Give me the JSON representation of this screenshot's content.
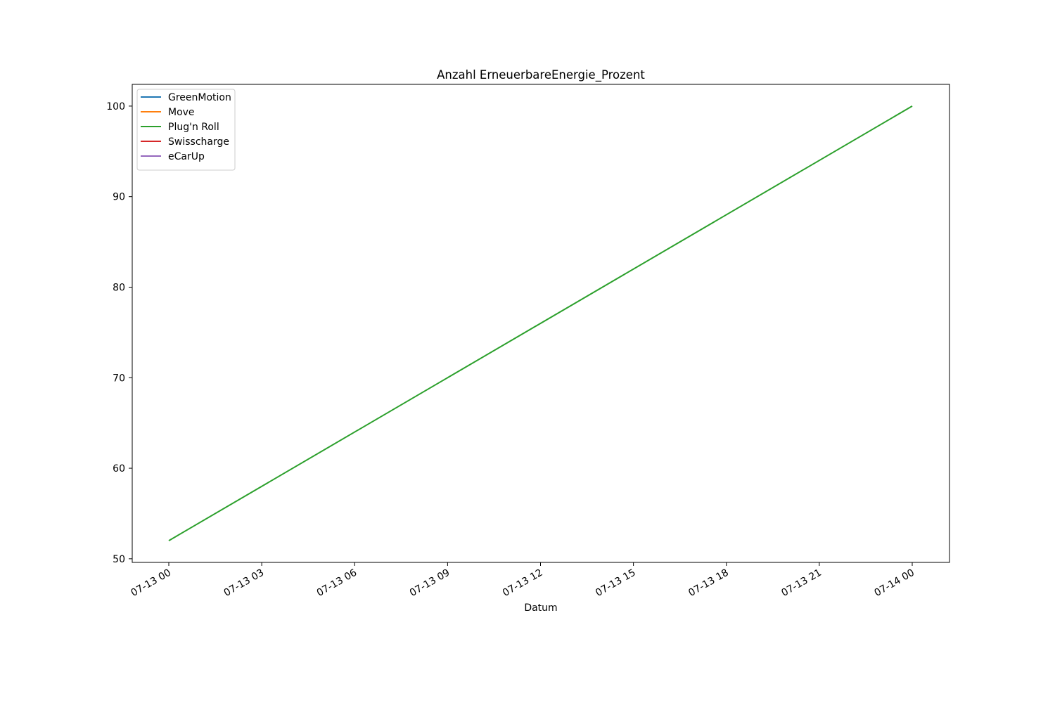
{
  "chart_data": {
    "type": "line",
    "title": "Anzahl ErneuerbareEnergie_Prozent",
    "xlabel": "Datum",
    "ylabel": "",
    "x_ticks": [
      "07-13 00",
      "07-13 03",
      "07-13 06",
      "07-13 09",
      "07-13 12",
      "07-13 15",
      "07-13 18",
      "07-13 21",
      "07-14 00"
    ],
    "y_ticks": [
      50,
      60,
      70,
      80,
      90,
      100
    ],
    "x_range": [
      "07-13 00",
      "07-14 00"
    ],
    "ylim": [
      49.6,
      102.4
    ],
    "grid": false,
    "legend_position": "upper-left",
    "series": [
      {
        "name": "GreenMotion",
        "color": "#1f77b4",
        "points": []
      },
      {
        "name": "Move",
        "color": "#ff7f0e",
        "points": []
      },
      {
        "name": "Plug'n Roll",
        "color": "#2ca02c",
        "points": [
          {
            "x": "07-13 00",
            "y": 52
          },
          {
            "x": "07-14 00",
            "y": 100
          }
        ]
      },
      {
        "name": "Swisscharge",
        "color": "#d62728",
        "points": []
      },
      {
        "name": "eCarUp",
        "color": "#9467bd",
        "points": []
      }
    ]
  }
}
